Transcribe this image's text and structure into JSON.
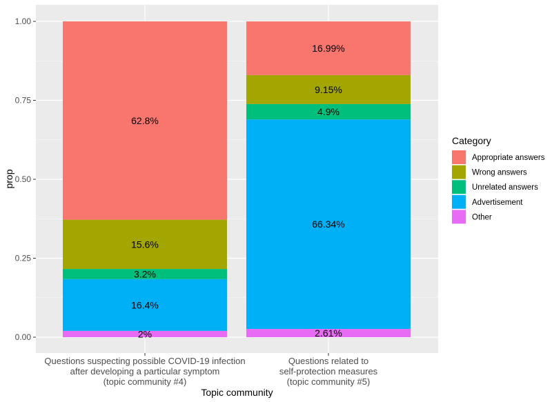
{
  "chart_data": {
    "type": "bar",
    "stacked": true,
    "xlabel": "Topic community",
    "ylabel": "prop",
    "ylim": [
      0,
      1
    ],
    "yticks": [
      "0.00",
      "0.25",
      "0.50",
      "0.75",
      "1.00"
    ],
    "grid": true,
    "legend_position": "right",
    "legend_title": "Category",
    "categories": [
      [
        "Questions suspecting possible COVID-19 infection",
        "after developing a particular symptom",
        "(topic community #4)"
      ],
      [
        "Questions related to",
        "self-protection measures",
        "(topic community #5)"
      ]
    ],
    "series": [
      {
        "name": "Appropriate answers",
        "color": "#F8766D",
        "values": [
          0.628,
          0.1699
        ],
        "labels": [
          "62.8%",
          "16.99%"
        ]
      },
      {
        "name": "Wrong answers",
        "color": "#A3A500",
        "values": [
          0.156,
          0.0915
        ],
        "labels": [
          "15.6%",
          "9.15%"
        ]
      },
      {
        "name": "Unrelated answers",
        "color": "#00BF7D",
        "values": [
          0.032,
          0.049
        ],
        "labels": [
          "3.2%",
          "4.9%"
        ]
      },
      {
        "name": "Advertisement",
        "color": "#00B0F6",
        "values": [
          0.164,
          0.6634
        ],
        "labels": [
          "16.4%",
          "66.34%"
        ]
      },
      {
        "name": "Other",
        "color": "#E76BF3",
        "values": [
          0.02,
          0.0261
        ],
        "labels": [
          "2%",
          "2.61%"
        ]
      }
    ]
  }
}
